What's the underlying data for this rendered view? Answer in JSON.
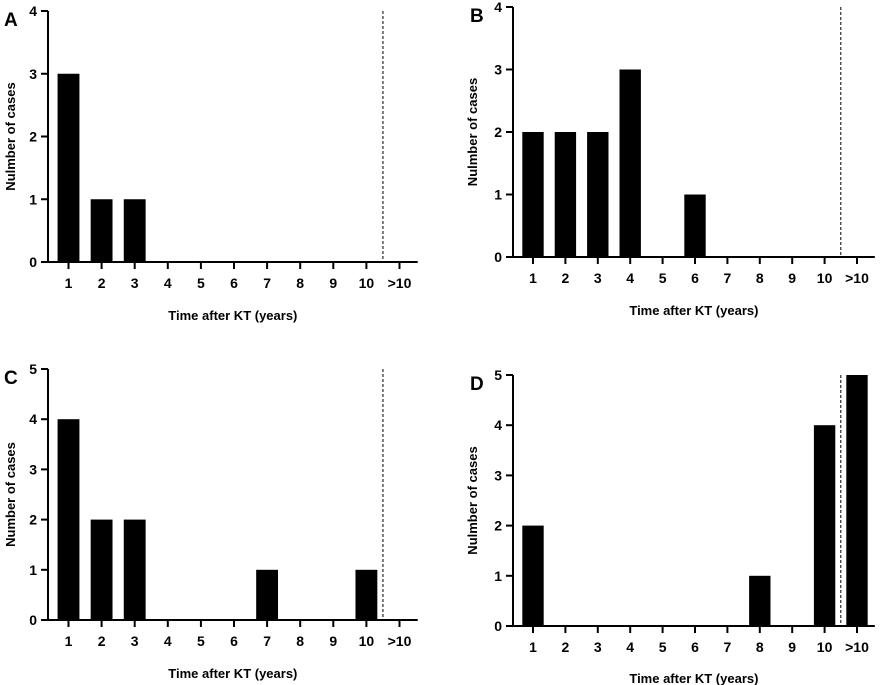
{
  "chart_data": [
    {
      "type": "bar",
      "panel": "A",
      "categories": [
        "1",
        "2",
        "3",
        "4",
        "5",
        "6",
        "7",
        "8",
        "9",
        "10",
        ">10"
      ],
      "values": [
        3,
        1,
        1,
        0,
        0,
        0,
        0,
        0,
        0,
        0,
        0
      ],
      "xlabel": "Time after KT (years)",
      "ylabel": "Nulmber of cases",
      "ylim": [
        0,
        4
      ],
      "yticks": [
        0,
        1,
        2,
        3,
        4
      ],
      "grid": false,
      "divider_after_category": "10"
    },
    {
      "type": "bar",
      "panel": "B",
      "categories": [
        "1",
        "2",
        "3",
        "4",
        "5",
        "6",
        "7",
        "8",
        "9",
        "10",
        ">10"
      ],
      "values": [
        2,
        2,
        2,
        3,
        0,
        1,
        0,
        0,
        0,
        0,
        0
      ],
      "xlabel": "Time after KT (years)",
      "ylabel": "Nulmber of cases",
      "ylim": [
        0,
        4
      ],
      "yticks": [
        0,
        1,
        2,
        3,
        4
      ],
      "grid": false,
      "divider_after_category": "10"
    },
    {
      "type": "bar",
      "panel": "C",
      "categories": [
        "1",
        "2",
        "3",
        "4",
        "5",
        "6",
        "7",
        "8",
        "9",
        "10",
        ">10"
      ],
      "values": [
        4,
        2,
        2,
        0,
        0,
        0,
        1,
        0,
        0,
        1,
        0
      ],
      "xlabel": "Time after KT (years)",
      "ylabel": "Number of cases",
      "ylim": [
        0,
        5
      ],
      "yticks": [
        0,
        1,
        2,
        3,
        4,
        5
      ],
      "grid": false,
      "divider_after_category": "10"
    },
    {
      "type": "bar",
      "panel": "D",
      "categories": [
        "1",
        "2",
        "3",
        "4",
        "5",
        "6",
        "7",
        "8",
        "9",
        "10",
        ">10"
      ],
      "values": [
        2,
        0,
        0,
        0,
        0,
        0,
        0,
        1,
        0,
        4,
        5
      ],
      "xlabel": "Time after KT (years)",
      "ylabel": "Nulmber of cases",
      "ylim": [
        0,
        5
      ],
      "yticks": [
        0,
        1,
        2,
        3,
        4,
        5
      ],
      "grid": false,
      "divider_after_category": "10"
    }
  ]
}
